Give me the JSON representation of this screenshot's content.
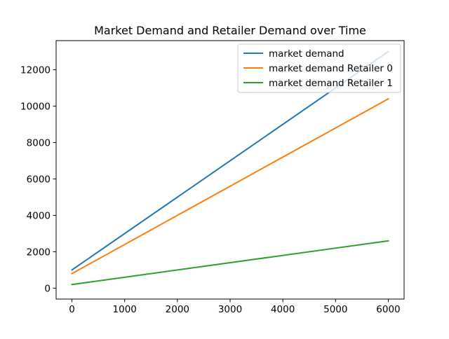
{
  "chart_data": {
    "type": "line",
    "title": "Market Demand and Retailer Demand over Time",
    "xlabel": "",
    "ylabel": "",
    "xlim": [
      -300,
      6300
    ],
    "ylim": [
      -600,
      13600
    ],
    "xticks": [
      0,
      1000,
      2000,
      3000,
      4000,
      5000,
      6000
    ],
    "yticks": [
      0,
      2000,
      4000,
      6000,
      8000,
      10000,
      12000
    ],
    "xtick_labels": [
      "0",
      "1000",
      "2000",
      "3000",
      "4000",
      "5000",
      "6000"
    ],
    "ytick_labels": [
      "0",
      "2000",
      "4000",
      "6000",
      "8000",
      "10000",
      "12000"
    ],
    "grid": false,
    "legend_position": "upper right",
    "series": [
      {
        "name": "market demand",
        "color": "#1f77b4",
        "x": [
          0,
          6000
        ],
        "y": [
          1000,
          13000
        ]
      },
      {
        "name": "market demand Retailer 0",
        "color": "#ff7f0e",
        "x": [
          0,
          6000
        ],
        "y": [
          800,
          10400
        ]
      },
      {
        "name": "market demand Retailer 1",
        "color": "#2ca02c",
        "x": [
          0,
          6000
        ],
        "y": [
          200,
          2600
        ]
      }
    ]
  }
}
